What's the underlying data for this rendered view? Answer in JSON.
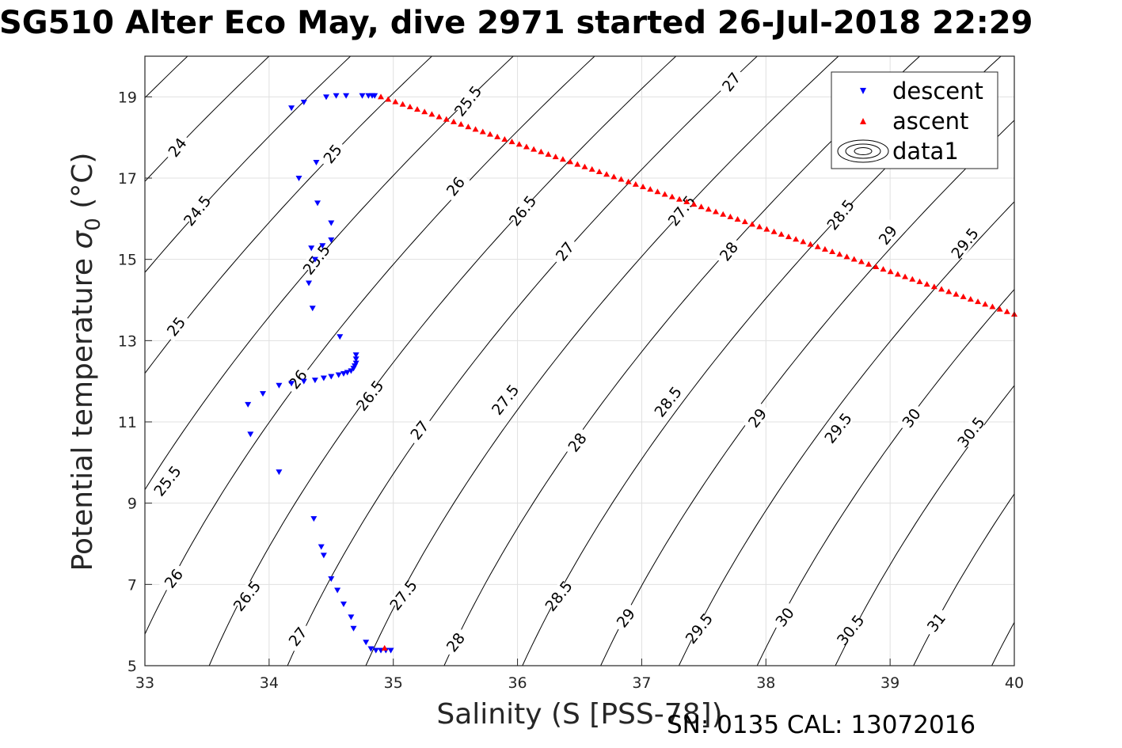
{
  "chart_data": {
    "type": "scatter",
    "title": "SG510 Alter Eco May, dive 2971 started 26-Jul-2018 22:29",
    "xlabel": "Salinity (S [PSS-78])",
    "ylabel_prefix": "Potential temperature ",
    "ylabel_sigma": "σ",
    "ylabel_sub": "0",
    "ylabel_suffix": " (°C)",
    "xlim": [
      33,
      40
    ],
    "ylim": [
      5,
      20
    ],
    "xticks": [
      "33",
      "34",
      "35",
      "36",
      "37",
      "38",
      "39",
      "40"
    ],
    "yticks": [
      "5",
      "7",
      "9",
      "11",
      "13",
      "15",
      "17",
      "19"
    ],
    "grid": true,
    "legend_position": "top-right",
    "footer": "SN: 0135  CAL: 13072016",
    "colors": {
      "descent": "#0000ff",
      "ascent": "#ff0000",
      "contour": "#000000",
      "grid": "#e0e0e0"
    },
    "series": [
      {
        "name": "descent",
        "marker": "triangle-down",
        "points": [
          [
            34.18,
            18.73
          ],
          [
            34.28,
            18.87
          ],
          [
            34.46,
            19.0
          ],
          [
            34.54,
            19.03
          ],
          [
            34.62,
            19.03
          ],
          [
            34.75,
            19.03
          ],
          [
            34.8,
            19.03
          ],
          [
            34.83,
            19.03
          ],
          [
            34.85,
            19.03
          ],
          [
            34.38,
            17.39
          ],
          [
            34.24,
            17.0
          ],
          [
            34.39,
            16.39
          ],
          [
            34.5,
            15.9
          ],
          [
            34.5,
            15.48
          ],
          [
            34.43,
            15.34
          ],
          [
            34.34,
            15.28
          ],
          [
            34.37,
            15.0
          ],
          [
            34.32,
            14.42
          ],
          [
            34.35,
            13.8
          ],
          [
            34.57,
            13.1
          ],
          [
            34.7,
            12.65
          ],
          [
            34.7,
            12.55
          ],
          [
            34.7,
            12.45
          ],
          [
            34.69,
            12.38
          ],
          [
            34.68,
            12.32
          ],
          [
            34.66,
            12.26
          ],
          [
            34.63,
            12.22
          ],
          [
            34.6,
            12.19
          ],
          [
            34.56,
            12.16
          ],
          [
            34.5,
            12.12
          ],
          [
            34.44,
            12.08
          ],
          [
            34.37,
            12.03
          ],
          [
            34.28,
            12.0
          ],
          [
            34.18,
            11.95
          ],
          [
            34.08,
            11.9
          ],
          [
            33.95,
            11.7
          ],
          [
            33.83,
            11.43
          ],
          [
            33.85,
            10.7
          ],
          [
            34.08,
            9.77
          ],
          [
            34.36,
            8.62
          ],
          [
            34.42,
            7.93
          ],
          [
            34.44,
            7.72
          ],
          [
            34.5,
            7.14
          ],
          [
            34.55,
            6.86
          ],
          [
            34.6,
            6.52
          ],
          [
            34.66,
            6.2
          ],
          [
            34.68,
            5.92
          ],
          [
            34.78,
            5.58
          ],
          [
            34.82,
            5.42
          ],
          [
            34.86,
            5.38
          ],
          [
            34.9,
            5.38
          ],
          [
            34.94,
            5.38
          ],
          [
            34.98,
            5.38
          ]
        ]
      },
      {
        "name": "ascent",
        "marker": "triangle-up",
        "x_from": 34.9,
        "x_to": 40.0,
        "y_from": 19.0,
        "y_to": 13.65,
        "count": 88,
        "extra_points": [
          [
            34.93,
            5.43
          ]
        ]
      }
    ],
    "contours": {
      "name": "data1",
      "levels": [
        23.5,
        24.0,
        24.5,
        25.0,
        25.5,
        26.0,
        26.5,
        27.0,
        27.5,
        28.0,
        28.5,
        29.0,
        29.5,
        30.0,
        30.5,
        31.0,
        31.5
      ],
      "labels": [
        {
          "text": "24",
          "s": 33.26,
          "t": 17.76
        },
        {
          "text": "24.5",
          "s": 33.42,
          "t": 16.2
        },
        {
          "text": "25",
          "s": 33.25,
          "t": 13.35
        },
        {
          "text": "25.5",
          "s": 33.18,
          "t": 9.55
        },
        {
          "text": "26",
          "s": 33.23,
          "t": 7.15
        },
        {
          "text": "26.5",
          "s": 33.82,
          "t": 6.72
        },
        {
          "text": "27",
          "s": 34.23,
          "t": 5.72
        },
        {
          "text": "28",
          "s": 35.5,
          "t": 5.58
        },
        {
          "text": "27.5",
          "s": 35.08,
          "t": 6.74
        },
        {
          "text": "28.5",
          "s": 36.33,
          "t": 6.72
        },
        {
          "text": "29",
          "s": 36.87,
          "t": 6.18
        },
        {
          "text": "29.5",
          "s": 37.46,
          "t": 5.92
        },
        {
          "text": "30",
          "s": 38.15,
          "t": 6.2
        },
        {
          "text": "30.5",
          "s": 38.68,
          "t": 5.88
        },
        {
          "text": "31",
          "s": 39.37,
          "t": 6.07
        },
        {
          "text": "25",
          "s": 34.51,
          "t": 17.6
        },
        {
          "text": "25.5",
          "s": 34.38,
          "t": 15.0
        },
        {
          "text": "26",
          "s": 34.23,
          "t": 12.05
        },
        {
          "text": "26.5",
          "s": 34.81,
          "t": 11.65
        },
        {
          "text": "27",
          "s": 35.21,
          "t": 10.8
        },
        {
          "text": "27.5",
          "s": 35.9,
          "t": 11.55
        },
        {
          "text": "28",
          "s": 36.48,
          "t": 10.5
        },
        {
          "text": "28.5",
          "s": 37.21,
          "t": 11.5
        },
        {
          "text": "29",
          "s": 37.93,
          "t": 11.1
        },
        {
          "text": "29.5",
          "s": 38.58,
          "t": 10.85
        },
        {
          "text": "30",
          "s": 39.17,
          "t": 11.1
        },
        {
          "text": "30.5",
          "s": 39.65,
          "t": 10.75
        },
        {
          "text": "25.5",
          "s": 35.6,
          "t": 18.9
        },
        {
          "text": "26",
          "s": 35.5,
          "t": 16.8
        },
        {
          "text": "26.5",
          "s": 36.04,
          "t": 16.2
        },
        {
          "text": "27",
          "s": 36.38,
          "t": 15.2
        },
        {
          "text": "27.5",
          "s": 37.32,
          "t": 16.2
        },
        {
          "text": "28",
          "s": 37.7,
          "t": 15.2
        },
        {
          "text": "28.5",
          "s": 38.6,
          "t": 16.1
        },
        {
          "text": "29",
          "s": 38.98,
          "t": 15.6
        },
        {
          "text": "29.5",
          "s": 39.6,
          "t": 15.4
        },
        {
          "text": "27",
          "s": 37.72,
          "t": 19.37
        }
      ]
    }
  }
}
